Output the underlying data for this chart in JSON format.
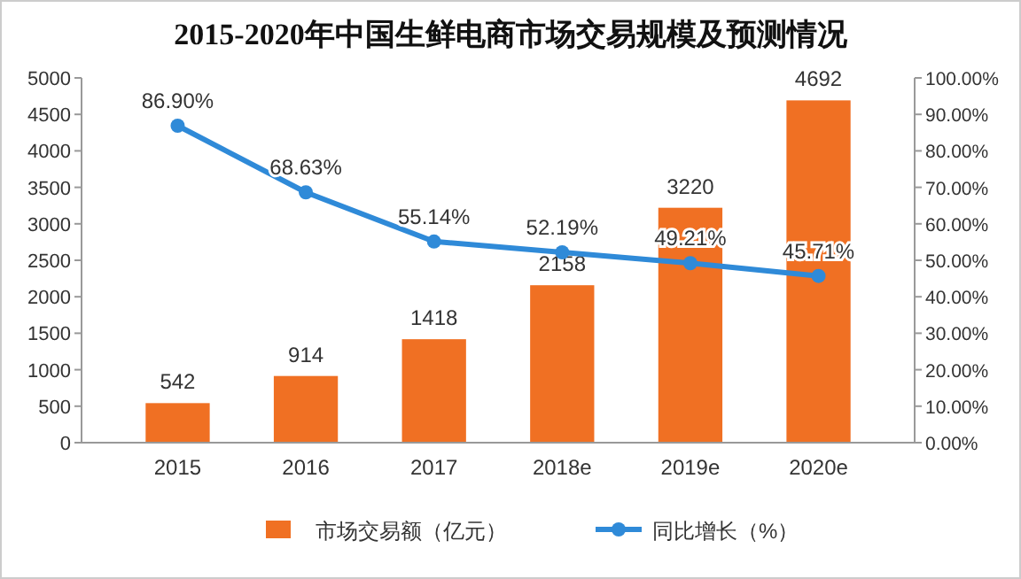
{
  "chart_data": {
    "type": "bar",
    "title": "2015-2020年中国生鲜电商市场交易规模及预测情况",
    "categories": [
      "2015",
      "2016",
      "2017",
      "2018e",
      "2019e",
      "2020e"
    ],
    "series": [
      {
        "name": "市场交易额（亿元）",
        "color": "#f07023",
        "values": [
          542,
          914,
          1418,
          2158,
          3220,
          4692
        ],
        "value_labels": [
          "542",
          "914",
          "1418",
          "2158",
          "3220",
          "4692"
        ]
      },
      {
        "name": "同比增长（%）",
        "type": "line",
        "axis": "y2",
        "color": "#2f8ad8",
        "values": [
          86.9,
          68.63,
          55.14,
          52.19,
          49.21,
          45.71
        ],
        "value_labels": [
          "86.90%",
          "68.63%",
          "55.14%",
          "52.19%",
          "49.21%",
          "45.71%"
        ]
      }
    ],
    "ylim": [
      0,
      5000
    ],
    "yticks": [
      0,
      500,
      1000,
      1500,
      2000,
      2500,
      3000,
      3500,
      4000,
      4500,
      5000
    ],
    "y2lim": [
      0,
      100
    ],
    "y2ticks": [
      {
        "value": 0,
        "label": "0.00%"
      },
      {
        "value": 10,
        "label": "10.00%"
      },
      {
        "value": 20,
        "label": "20.00%"
      },
      {
        "value": 30,
        "label": "30.00%"
      },
      {
        "value": 40,
        "label": "40.00%"
      },
      {
        "value": 50,
        "label": "50.00%"
      },
      {
        "value": 60,
        "label": "60.00%"
      },
      {
        "value": 70,
        "label": "70.00%"
      },
      {
        "value": 80,
        "label": "80.00%"
      },
      {
        "value": 90,
        "label": "90.00%"
      },
      {
        "value": 100,
        "label": "100.00%"
      }
    ],
    "marker": "circle",
    "legend": "bottom",
    "grid": false
  }
}
